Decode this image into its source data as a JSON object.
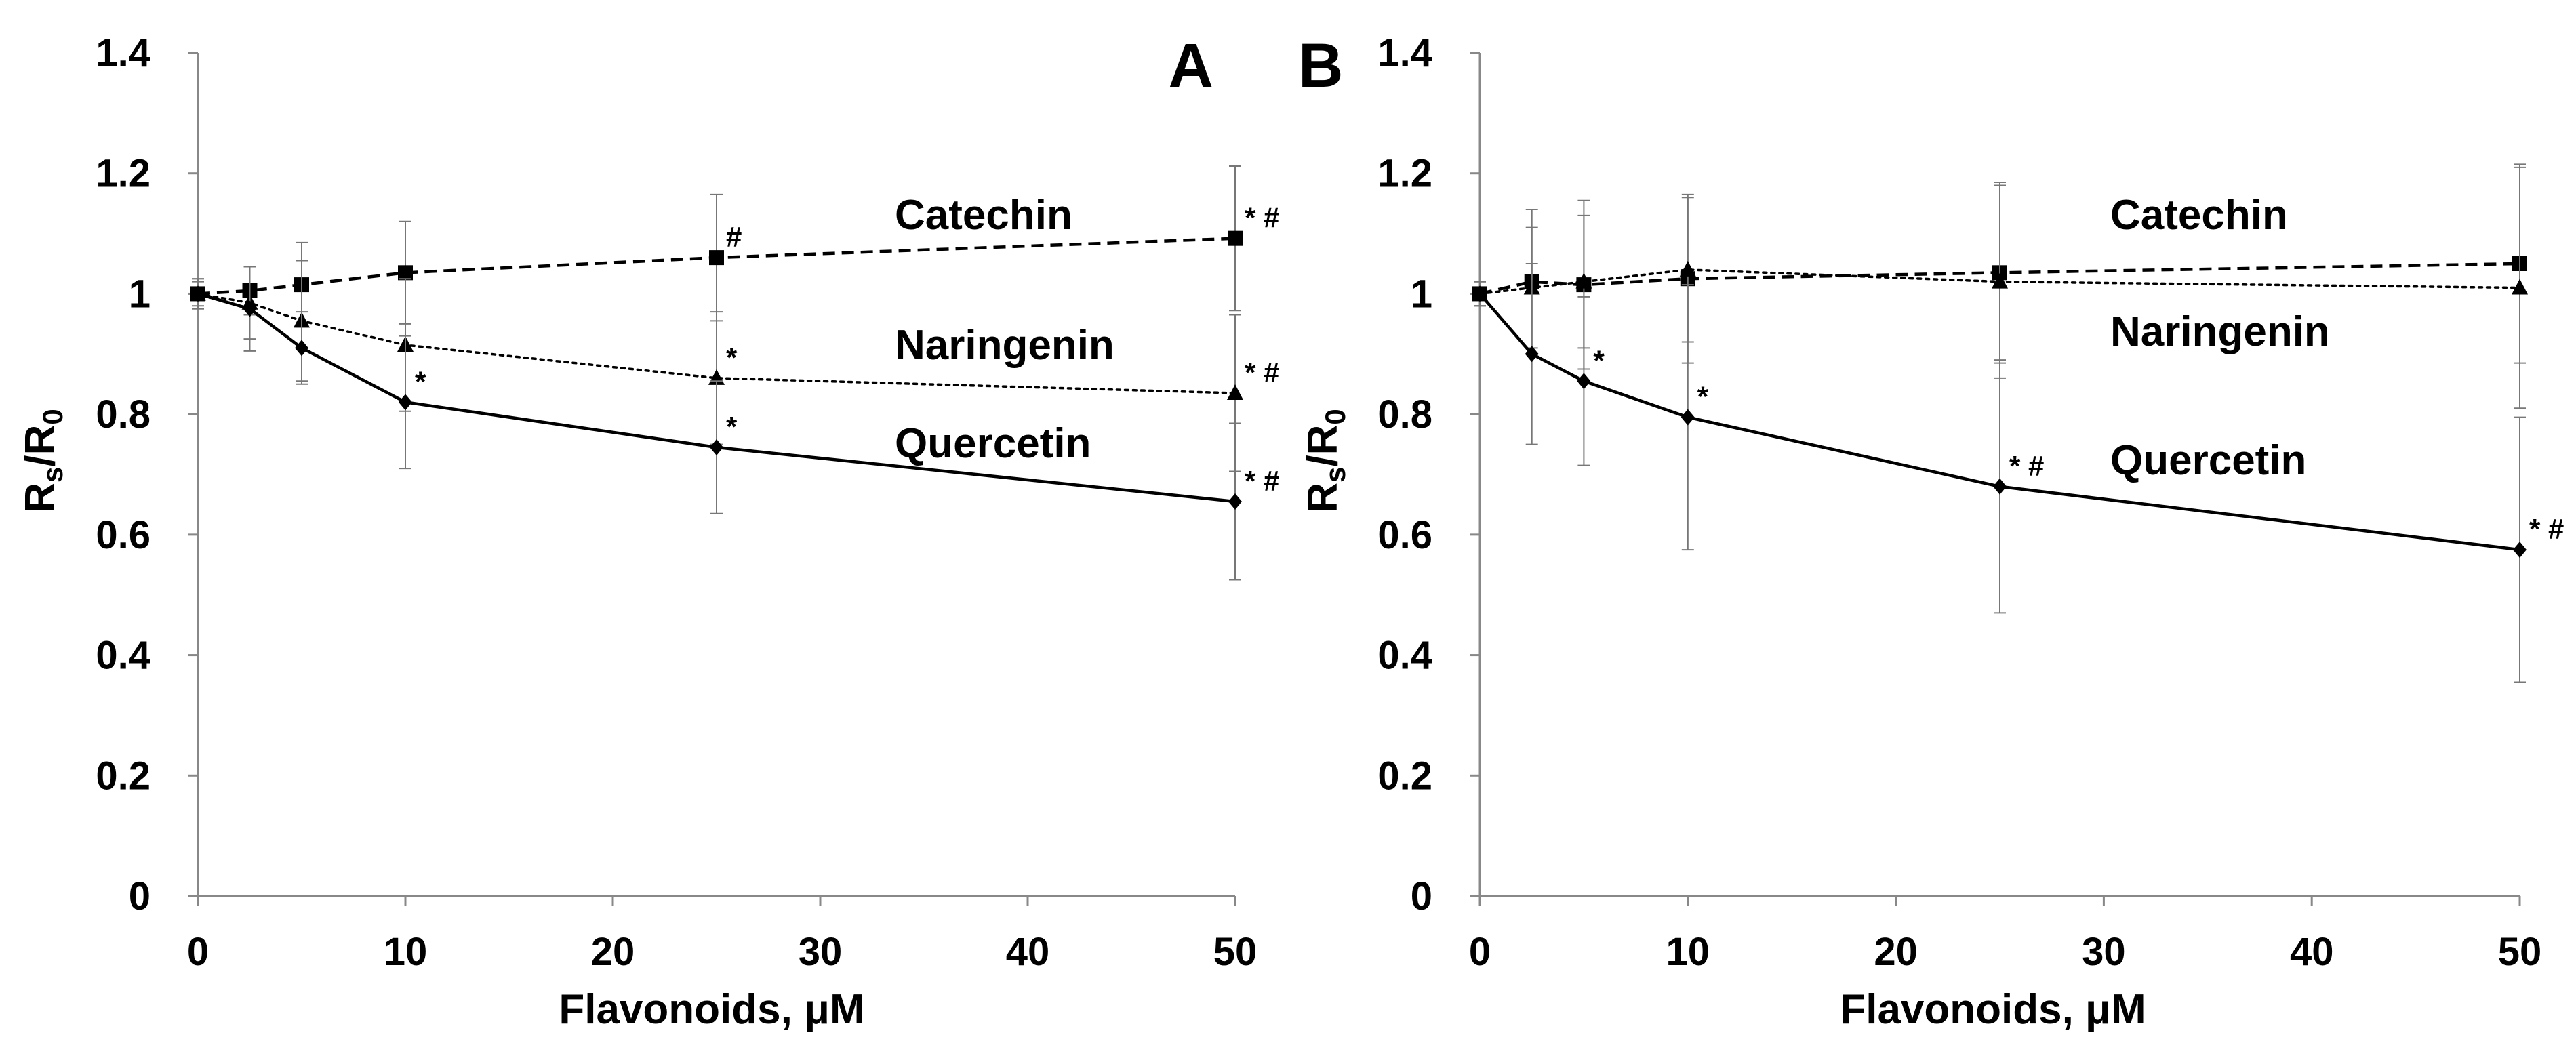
{
  "chart_data": [
    {
      "panel": "A",
      "type": "line",
      "xlabel": "Flavonoids, μM",
      "ylabel_main": "R",
      "ylabel_sub1": "s",
      "ylabel_mid": "/R",
      "ylabel_sub2": "0",
      "xlim": [
        0,
        50
      ],
      "ylim": [
        0,
        1.4
      ],
      "xticks": [
        0,
        10,
        20,
        30,
        40,
        50
      ],
      "yticks": [
        0,
        0.2,
        0.4,
        0.6,
        0.8,
        1,
        1.2,
        1.4
      ],
      "x_tick_labels": [
        "0",
        "10",
        "20",
        "30",
        "40",
        "50"
      ],
      "y_tick_labels": [
        "0",
        "0.2",
        "0.4",
        "0.6",
        "0.8",
        "1",
        "1.2",
        "1.4"
      ],
      "grid": false,
      "series": [
        {
          "name": "Catechin",
          "marker": "square",
          "line_style": "dashed",
          "x": [
            0,
            2.5,
            5,
            10,
            25,
            50
          ],
          "y": [
            1.0,
            1.005,
            1.015,
            1.035,
            1.06,
            1.092
          ],
          "err": [
            0.025,
            0.04,
            0.07,
            0.085,
            0.105,
            0.12
          ],
          "annotations": [
            "",
            "",
            "",
            "",
            "#",
            "* #"
          ]
        },
        {
          "name": "Naringenin",
          "marker": "triangle",
          "line_style": "dotted",
          "x": [
            0,
            2.5,
            5,
            10,
            25,
            50
          ],
          "y": [
            1.0,
            0.985,
            0.955,
            0.915,
            0.86,
            0.835
          ],
          "err": [
            0.02,
            0.06,
            0.1,
            0.11,
            0.11,
            0.13
          ],
          "annotations": [
            "",
            "",
            "",
            "",
            "*",
            "* #"
          ]
        },
        {
          "name": "Quercetin",
          "marker": "diamond",
          "line_style": "solid",
          "x": [
            0,
            2.5,
            5,
            10,
            25,
            50
          ],
          "y": [
            1.0,
            0.975,
            0.91,
            0.82,
            0.745,
            0.655
          ],
          "err": [
            0.025,
            0.07,
            0.06,
            0.11,
            0.11,
            0.13
          ],
          "annotations": [
            "",
            "",
            "",
            "*",
            "*",
            "* #"
          ]
        }
      ]
    },
    {
      "panel": "B",
      "type": "line",
      "xlabel": "Flavonoids, μM",
      "ylabel_main": "R",
      "ylabel_sub1": "s",
      "ylabel_mid": "/R",
      "ylabel_sub2": "0",
      "xlim": [
        0,
        50
      ],
      "ylim": [
        0,
        1.4
      ],
      "xticks": [
        0,
        10,
        20,
        30,
        40,
        50
      ],
      "yticks": [
        0,
        0.2,
        0.4,
        0.6,
        0.8,
        1,
        1.2,
        1.4
      ],
      "x_tick_labels": [
        "0",
        "10",
        "20",
        "30",
        "40",
        "50"
      ],
      "y_tick_labels": [
        "0",
        "0.2",
        "0.4",
        "0.6",
        "0.8",
        "1",
        "1.2",
        "1.4"
      ],
      "grid": false,
      "series": [
        {
          "name": "Catechin",
          "marker": "square",
          "line_style": "dashed",
          "x": [
            0,
            2.5,
            5,
            10,
            25,
            50
          ],
          "y": [
            1.0,
            1.02,
            1.015,
            1.025,
            1.035,
            1.05
          ],
          "err": [
            0.02,
            0.12,
            0.14,
            0.14,
            0.15,
            0.165
          ],
          "annotations": [
            "",
            "",
            "",
            "",
            "",
            ""
          ]
        },
        {
          "name": "Naringenin",
          "marker": "triangle",
          "line_style": "dotted",
          "x": [
            0,
            2.5,
            5,
            10,
            25,
            50
          ],
          "y": [
            1.0,
            1.01,
            1.02,
            1.04,
            1.02,
            1.01
          ],
          "err": [
            0.02,
            0.1,
            0.11,
            0.12,
            0.16,
            0.2
          ],
          "annotations": [
            "",
            "",
            "",
            "",
            "",
            ""
          ]
        },
        {
          "name": "Quercetin",
          "marker": "diamond",
          "line_style": "solid",
          "x": [
            0,
            2.5,
            5,
            10,
            25,
            50
          ],
          "y": [
            1.0,
            0.9,
            0.855,
            0.795,
            0.68,
            0.575
          ],
          "err": [
            0.02,
            0.15,
            0.14,
            0.22,
            0.21,
            0.22
          ],
          "annotations": [
            "",
            "",
            "*",
            "*",
            "* #",
            "* #"
          ]
        }
      ]
    }
  ]
}
